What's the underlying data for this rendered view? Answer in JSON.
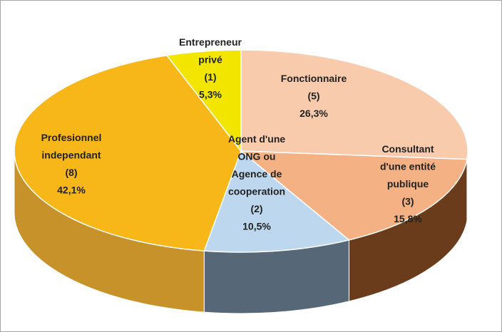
{
  "chart_data": {
    "type": "pie3d",
    "categories": [
      "Fonctionnaire",
      "Consultant\nd'une entité\npublique",
      "Agent d'une\nONG ou\nAgence de\ncooperation",
      "Profesionnel\nindependant",
      "Entrepreneur\nprivé"
    ],
    "counts": [
      5,
      3,
      2,
      8,
      1
    ],
    "count_labels": [
      "(5)",
      "(3)",
      "(2)",
      "(8)",
      "(1)"
    ],
    "values": [
      26.3,
      15.8,
      10.5,
      42.1,
      5.3
    ],
    "value_labels": [
      "26,3%",
      "15,8%",
      "10,5%",
      "42,1%",
      "5,3%"
    ],
    "colors": [
      "#f8cbad",
      "#f4b183",
      "#bdd7ee",
      "#f7b718",
      "#f2e600"
    ],
    "side_colors": [
      "#9a5a30",
      "#6a3c1c",
      "#566877",
      "#c8922a",
      "#b0a400"
    ]
  }
}
